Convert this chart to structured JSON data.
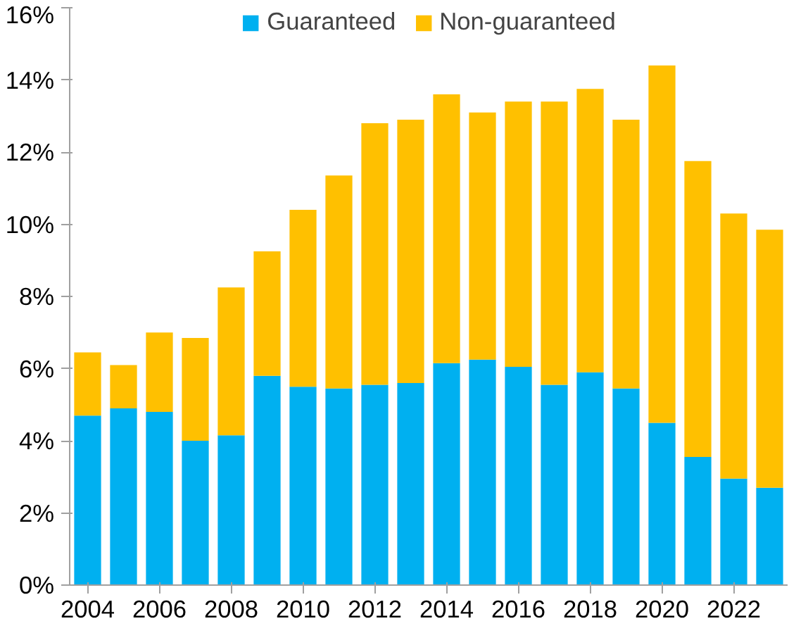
{
  "chart_data": {
    "type": "bar",
    "stacked": true,
    "categories": [
      "2004",
      null,
      "2006",
      null,
      "2008",
      null,
      "2010",
      null,
      "2012",
      null,
      "2014",
      null,
      "2016",
      null,
      "2018",
      null,
      "2020",
      null,
      "2022",
      null
    ],
    "series": [
      {
        "name": "Guaranteed",
        "color": "#00b0f0",
        "values": [
          4.7,
          4.9,
          4.8,
          4.0,
          4.15,
          5.8,
          5.5,
          5.45,
          5.55,
          5.6,
          6.15,
          6.25,
          6.05,
          5.55,
          5.9,
          5.45,
          4.5,
          3.55,
          2.95,
          2.7
        ]
      },
      {
        "name": "Non-guaranteed",
        "color": "#ffc000",
        "values": [
          1.75,
          1.2,
          2.2,
          2.85,
          4.1,
          3.45,
          4.9,
          5.9,
          7.25,
          7.3,
          7.45,
          6.85,
          7.35,
          7.85,
          7.85,
          7.45,
          9.9,
          8.2,
          7.35,
          7.15
        ]
      }
    ],
    "ylim": [
      0,
      16
    ],
    "yticks": [
      {
        "value": 0,
        "label": "0%"
      },
      {
        "value": 2,
        "label": "2%"
      },
      {
        "value": 4,
        "label": "4%"
      },
      {
        "value": 6,
        "label": "6%"
      },
      {
        "value": 8,
        "label": "8%"
      },
      {
        "value": 10,
        "label": "10%"
      },
      {
        "value": 12,
        "label": "12%"
      },
      {
        "value": 14,
        "label": "14%"
      },
      {
        "value": 16,
        "label": "16%"
      }
    ],
    "legend": "top",
    "grid": false
  }
}
